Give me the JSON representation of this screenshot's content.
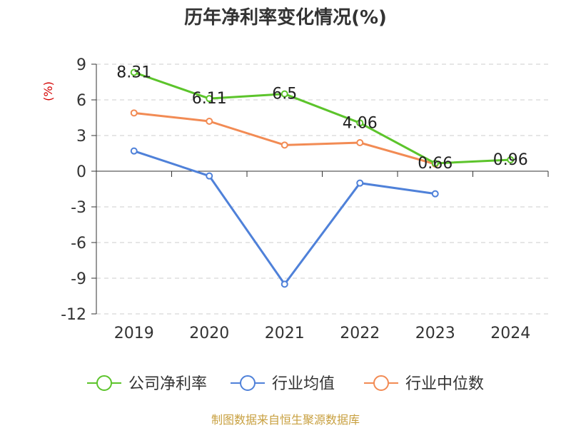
{
  "chart_data": {
    "type": "line",
    "title": "历年净利率变化情况(%)",
    "ylabel": "(%)",
    "categories": [
      "2019",
      "2020",
      "2021",
      "2022",
      "2023",
      "2024"
    ],
    "y_ticks": [
      9,
      6,
      3,
      0,
      -3,
      -6,
      -9,
      -12
    ],
    "ylim": [
      -12,
      9
    ],
    "grid": true,
    "legend_position": "bottom",
    "series": [
      {
        "name": "公司净利率",
        "color": "#5cc42b",
        "values": [
          8.31,
          6.11,
          6.5,
          4.06,
          0.66,
          0.96
        ],
        "labels": [
          "8.31",
          "6.11",
          "6.5",
          "4.06",
          "0.66",
          "0.96"
        ]
      },
      {
        "name": "行业均值",
        "color": "#4f81d9",
        "values": [
          1.7,
          -0.4,
          -9.5,
          -1.0,
          -1.9,
          null
        ]
      },
      {
        "name": "行业中位数",
        "color": "#f28b54",
        "values": [
          4.9,
          4.2,
          2.2,
          2.4,
          0.6,
          null
        ]
      }
    ]
  },
  "footer": {
    "source": "制图数据来自恒生聚源数据库"
  }
}
